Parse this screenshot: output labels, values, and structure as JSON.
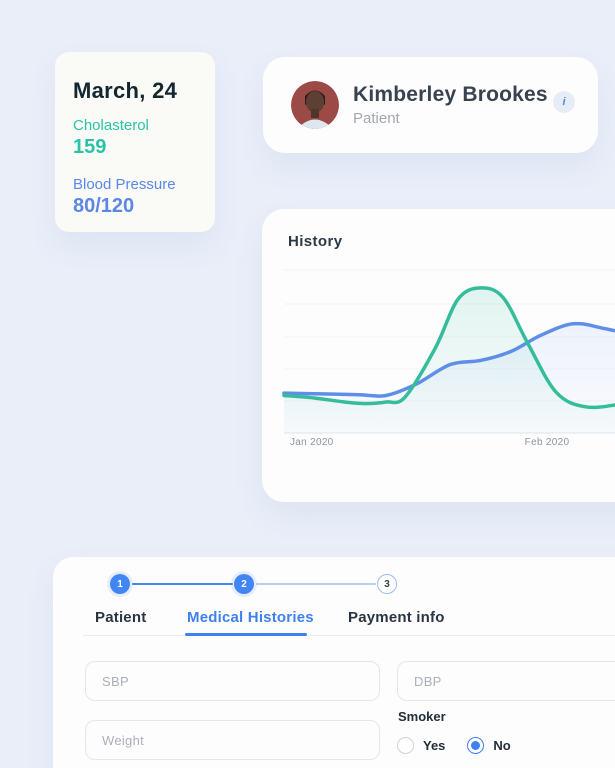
{
  "stat_card": {
    "date": "March, 24",
    "metrics": [
      {
        "label": "Cholasterol",
        "value": "159",
        "color": "#2bc3a4"
      },
      {
        "label": "Blood Pressure",
        "value": "80/120",
        "color": "#5b87e5"
      }
    ]
  },
  "patient_card": {
    "name": "Kimberley Brookes",
    "role": "Patient",
    "info_icon": "i"
  },
  "history_card": {
    "title": "History"
  },
  "chart_data": {
    "type": "line",
    "title": "History",
    "x_ticks": [
      "Jan 2020",
      "Feb 2020"
    ],
    "xlabel": "",
    "ylabel": "",
    "y_axis_labels_visible": false,
    "grid": "horizontal",
    "legend": "none",
    "value_scale": "relative 0-100 (axis unlabeled in source)",
    "series": [
      {
        "name": "teal-series",
        "color": "#35bd9b",
        "points": [
          [
            0,
            23
          ],
          [
            0.08,
            21.5
          ],
          [
            0.16,
            19
          ],
          [
            0.215,
            18
          ],
          [
            0.27,
            19
          ],
          [
            0.32,
            22
          ],
          [
            0.4,
            52
          ],
          [
            0.46,
            82
          ],
          [
            0.52,
            89
          ],
          [
            0.58,
            83
          ],
          [
            0.645,
            55
          ],
          [
            0.72,
            25
          ],
          [
            0.8,
            16
          ],
          [
            0.9,
            18
          ],
          [
            1,
            21
          ]
        ]
      },
      {
        "name": "blue-series",
        "color": "#5f8ee8",
        "points": [
          [
            0,
            24.5
          ],
          [
            0.1,
            24
          ],
          [
            0.2,
            23.5
          ],
          [
            0.27,
            23
          ],
          [
            0.35,
            30
          ],
          [
            0.44,
            42
          ],
          [
            0.52,
            44.5
          ],
          [
            0.6,
            50
          ],
          [
            0.68,
            60
          ],
          [
            0.765,
            67
          ],
          [
            0.85,
            64
          ],
          [
            1,
            56
          ]
        ]
      }
    ]
  },
  "form": {
    "steps": [
      {
        "number": "1",
        "state": "complete"
      },
      {
        "number": "2",
        "state": "active"
      },
      {
        "number": "3",
        "state": "upcoming"
      }
    ],
    "tabs": [
      {
        "label": "Patient",
        "active": false
      },
      {
        "label": "Medical Histories",
        "active": true
      },
      {
        "label": "Payment info",
        "active": false
      }
    ],
    "fields": [
      {
        "placeholder": "SBP",
        "value": ""
      },
      {
        "placeholder": "DBP",
        "value": ""
      },
      {
        "placeholder": "Weight",
        "value": ""
      }
    ],
    "smoker": {
      "label": "Smoker",
      "options": [
        {
          "label": "Yes",
          "selected": false
        },
        {
          "label": "No",
          "selected": true
        }
      ]
    }
  },
  "colors": {
    "page_bg": "#e9eef9",
    "accent_blue": "#3f81f2",
    "teal": "#2bc3a4",
    "chart_green": "#35bd9b",
    "chart_blue": "#5f8ee8"
  }
}
